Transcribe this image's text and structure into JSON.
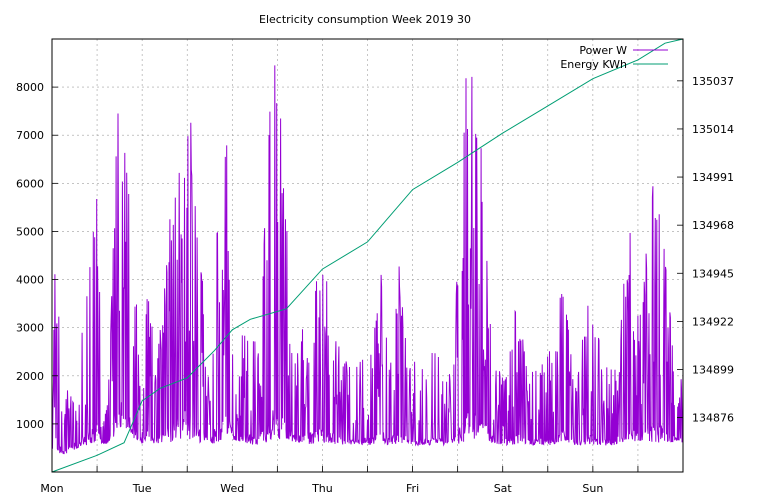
{
  "chart_data": {
    "type": "line",
    "title": "Electricity consumption Week 2019 30",
    "x_categories": [
      "Mon",
      "Tue",
      "Wed",
      "Thu",
      "Fri",
      "Sat",
      "Sun"
    ],
    "x_range_days": [
      0,
      7
    ],
    "y_left": {
      "ticks": [
        1000,
        2000,
        3000,
        4000,
        5000,
        6000,
        7000,
        8000
      ],
      "ylim": [
        0,
        9000
      ]
    },
    "y_right": {
      "ticks": [
        134876,
        134899,
        134922,
        134945,
        134968,
        134991,
        135014,
        135037
      ],
      "ylim": [
        134850,
        135057
      ]
    },
    "grid": true,
    "legend_position": "top-right",
    "colors": {
      "power": "#9400d3",
      "energy": "#009e73"
    },
    "series": [
      {
        "name": "Power W",
        "axis": "left",
        "envelope": {
          "day": [
            0.0,
            0.05,
            0.12,
            0.3,
            0.45,
            0.5,
            0.55,
            0.62,
            0.75,
            0.85,
            0.95,
            1.0,
            1.05,
            1.15,
            1.3,
            1.45,
            1.55,
            1.65,
            1.75,
            1.85,
            1.95,
            2.05,
            2.15,
            2.3,
            2.45,
            2.55,
            2.7,
            2.85,
            3.0,
            3.15,
            3.3,
            3.45,
            3.55,
            3.65,
            3.75,
            3.85,
            3.95,
            4.1,
            4.25,
            4.4,
            4.5,
            4.6,
            4.75,
            4.9,
            5.0,
            5.15,
            5.3,
            5.45,
            5.55,
            5.65,
            5.8,
            5.95,
            6.1,
            6.25,
            6.4,
            6.55,
            6.65,
            6.8,
            6.95,
            7.0
          ],
          "peak": [
            2800,
            5150,
            1200,
            3000,
            5150,
            7200,
            1000,
            1500,
            9000,
            7200,
            3000,
            1200,
            4500,
            2200,
            5100,
            9000,
            7200,
            4500,
            2000,
            6800,
            7200,
            2000,
            3500,
            2600,
            9000,
            7200,
            2400,
            3900,
            4500,
            3200,
            2200,
            2400,
            2600,
            4500,
            2200,
            4600,
            2400,
            2200,
            2600,
            1800,
            4400,
            9000,
            7200,
            2400,
            2000,
            3600,
            2000,
            2400,
            2600,
            4500,
            1800,
            3600,
            2600,
            2200,
            5100,
            3600,
            7200,
            4600,
            2000,
            2100
          ],
          "base": [
            350,
            400,
            350,
            500,
            550,
            600,
            600,
            550,
            900,
            700,
            650,
            600,
            600,
            580,
            600,
            700,
            650,
            600,
            580,
            600,
            650,
            600,
            580,
            560,
            650,
            650,
            600,
            580,
            600,
            580,
            560,
            560,
            560,
            600,
            560,
            600,
            560,
            550,
            560,
            550,
            580,
            650,
            650,
            600,
            560,
            560,
            550,
            560,
            560,
            600,
            550,
            560,
            550,
            550,
            600,
            560,
            620,
            600,
            580,
            600
          ]
        }
      },
      {
        "name": "Energy KWh",
        "axis": "right",
        "day": [
          0.0,
          0.5,
          0.8,
          1.0,
          1.2,
          1.5,
          1.8,
          2.0,
          2.2,
          2.6,
          3.0,
          3.5,
          4.0,
          4.5,
          5.0,
          5.5,
          6.0,
          6.5,
          6.8,
          7.0
        ],
        "kwh": [
          134850,
          134858,
          134864,
          134884,
          134890,
          134895,
          134908,
          134918,
          134923,
          134928,
          134947,
          134960,
          134985,
          134998,
          135012,
          135025,
          135038,
          135047,
          135055,
          135057
        ]
      }
    ]
  }
}
